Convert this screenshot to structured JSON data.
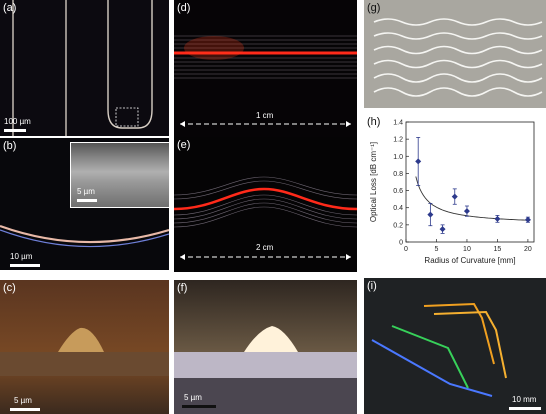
{
  "panels": {
    "a": {
      "label": "(a)",
      "scale": "100 µm"
    },
    "b": {
      "label": "(b)",
      "scale": "10 µm",
      "inset_scale": "5 µm"
    },
    "c": {
      "label": "(c)",
      "scale": "5 µm"
    },
    "d": {
      "label": "(d)",
      "scale": "1 cm"
    },
    "e": {
      "label": "(e)",
      "scale": "2 cm"
    },
    "f": {
      "label": "(f)",
      "scale": "5 µm"
    },
    "g": {
      "label": "(g)"
    },
    "h": {
      "label": "(h)"
    },
    "i": {
      "label": "(i)",
      "scale": "10 mm"
    }
  },
  "chart_data": {
    "type": "scatter",
    "xlabel": "Radius of Curvature [mm]",
    "ylabel": "Optical Loss [dB cm⁻¹]",
    "xlim": [
      0,
      21
    ],
    "ylim": [
      0,
      1.4
    ],
    "xticks": [
      "0",
      "5",
      "10",
      "15",
      "20"
    ],
    "yticks": [
      "0",
      "0.2",
      "0.4",
      "0.6",
      "0.8",
      "1.0",
      "1.2",
      "1.4"
    ],
    "x": [
      2,
      4,
      6,
      8,
      10,
      15,
      20
    ],
    "y": [
      0.94,
      0.32,
      0.15,
      0.53,
      0.36,
      0.27,
      0.26
    ],
    "yerr": [
      0.28,
      0.13,
      0.05,
      0.09,
      0.06,
      0.04,
      0.03
    ],
    "fit": true,
    "grid": false,
    "marker_color": "#2d3a8c"
  }
}
